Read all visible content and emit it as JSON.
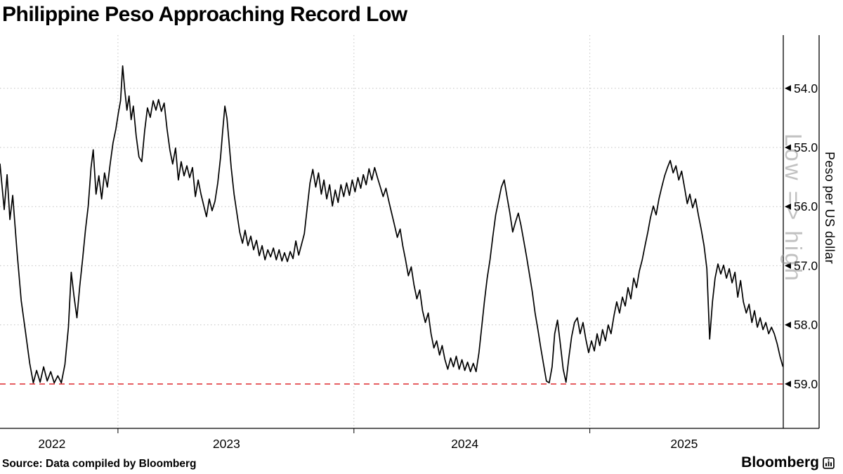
{
  "header": {
    "title": "Philippine Peso Approaching Record Low"
  },
  "footer": {
    "source": "Source: Data compiled by Bloomberg",
    "brand": "Bloomberg"
  },
  "chart_data": {
    "type": "line",
    "title": "Philippine Peso Approaching Record Low",
    "series_name": "Peso per US dollar",
    "ylabel": "Peso per US dollar",
    "axis_direction_note": "Low => high",
    "y_axis_inverted": true,
    "y_ticks": [
      54.0,
      55.0,
      56.0,
      57.0,
      58.0,
      59.0
    ],
    "y_domain": [
      53.1,
      59.75
    ],
    "x_domain": [
      2022.5,
      2025.82
    ],
    "record_low_level": 59.0,
    "year_boundaries": [
      2023,
      2024,
      2025
    ],
    "x_year_labels": [
      {
        "label": "2022",
        "t": 2022.72
      },
      {
        "label": "2023",
        "t": 2023.46
      },
      {
        "label": "2024",
        "t": 2024.47
      },
      {
        "label": "2025",
        "t": 2025.4
      }
    ],
    "line_color": "#000000",
    "record_line_color": "#e0393e",
    "grid_color": "#c3c3c3",
    "points": [
      [
        2022.5,
        55.28
      ],
      [
        2022.518,
        56.05
      ],
      [
        2022.53,
        55.46
      ],
      [
        2022.542,
        56.22
      ],
      [
        2022.554,
        55.81
      ],
      [
        2022.572,
        56.76
      ],
      [
        2022.59,
        57.59
      ],
      [
        2022.608,
        58.12
      ],
      [
        2022.626,
        58.65
      ],
      [
        2022.641,
        58.98
      ],
      [
        2022.655,
        58.77
      ],
      [
        2022.67,
        58.97
      ],
      [
        2022.685,
        58.71
      ],
      [
        2022.7,
        58.95
      ],
      [
        2022.715,
        58.79
      ],
      [
        2022.73,
        58.98
      ],
      [
        2022.745,
        58.86
      ],
      [
        2022.76,
        58.98
      ],
      [
        2022.775,
        58.67
      ],
      [
        2022.79,
        58.04
      ],
      [
        2022.802,
        57.11
      ],
      [
        2022.814,
        57.53
      ],
      [
        2022.826,
        57.88
      ],
      [
        2022.838,
        57.35
      ],
      [
        2022.85,
        56.9
      ],
      [
        2022.862,
        56.4
      ],
      [
        2022.874,
        55.99
      ],
      [
        2022.886,
        55.34
      ],
      [
        2022.895,
        55.04
      ],
      [
        2022.907,
        55.79
      ],
      [
        2022.919,
        55.48
      ],
      [
        2022.931,
        55.87
      ],
      [
        2022.943,
        55.43
      ],
      [
        2022.955,
        55.67
      ],
      [
        2022.967,
        55.28
      ],
      [
        2022.979,
        54.92
      ],
      [
        2022.991,
        54.69
      ],
      [
        2023.002,
        54.41
      ],
      [
        2023.011,
        54.21
      ],
      [
        2023.02,
        53.62
      ],
      [
        2023.029,
        54.04
      ],
      [
        2023.038,
        54.37
      ],
      [
        2023.047,
        54.13
      ],
      [
        2023.056,
        54.53
      ],
      [
        2023.065,
        54.3
      ],
      [
        2023.077,
        54.8
      ],
      [
        2023.089,
        55.16
      ],
      [
        2023.101,
        55.24
      ],
      [
        2023.113,
        54.72
      ],
      [
        2023.125,
        54.33
      ],
      [
        2023.137,
        54.49
      ],
      [
        2023.149,
        54.21
      ],
      [
        2023.161,
        54.37
      ],
      [
        2023.172,
        54.19
      ],
      [
        2023.184,
        54.39
      ],
      [
        2023.196,
        54.25
      ],
      [
        2023.208,
        54.69
      ],
      [
        2023.22,
        55.04
      ],
      [
        2023.232,
        55.28
      ],
      [
        2023.244,
        55.01
      ],
      [
        2023.256,
        55.55
      ],
      [
        2023.268,
        55.24
      ],
      [
        2023.28,
        55.48
      ],
      [
        2023.292,
        55.31
      ],
      [
        2023.304,
        55.51
      ],
      [
        2023.316,
        55.34
      ],
      [
        2023.328,
        55.83
      ],
      [
        2023.34,
        55.55
      ],
      [
        2023.352,
        55.79
      ],
      [
        2023.364,
        55.99
      ],
      [
        2023.375,
        56.17
      ],
      [
        2023.387,
        55.87
      ],
      [
        2023.399,
        56.07
      ],
      [
        2023.411,
        55.91
      ],
      [
        2023.423,
        55.6
      ],
      [
        2023.435,
        55.16
      ],
      [
        2023.444,
        54.72
      ],
      [
        2023.453,
        54.3
      ],
      [
        2023.462,
        54.51
      ],
      [
        2023.471,
        54.92
      ],
      [
        2023.48,
        55.34
      ],
      [
        2023.492,
        55.79
      ],
      [
        2023.504,
        56.11
      ],
      [
        2023.516,
        56.43
      ],
      [
        2023.528,
        56.62
      ],
      [
        2023.539,
        56.4
      ],
      [
        2023.551,
        56.66
      ],
      [
        2023.563,
        56.5
      ],
      [
        2023.575,
        56.73
      ],
      [
        2023.587,
        56.57
      ],
      [
        2023.599,
        56.83
      ],
      [
        2023.611,
        56.66
      ],
      [
        2023.623,
        56.9
      ],
      [
        2023.635,
        56.73
      ],
      [
        2023.647,
        56.85
      ],
      [
        2023.659,
        56.7
      ],
      [
        2023.671,
        56.9
      ],
      [
        2023.683,
        56.73
      ],
      [
        2023.695,
        56.92
      ],
      [
        2023.706,
        56.78
      ],
      [
        2023.718,
        56.93
      ],
      [
        2023.73,
        56.76
      ],
      [
        2023.742,
        56.88
      ],
      [
        2023.754,
        56.58
      ],
      [
        2023.766,
        56.82
      ],
      [
        2023.778,
        56.64
      ],
      [
        2023.79,
        56.46
      ],
      [
        2023.802,
        56.02
      ],
      [
        2023.814,
        55.6
      ],
      [
        2023.826,
        55.37
      ],
      [
        2023.838,
        55.67
      ],
      [
        2023.85,
        55.43
      ],
      [
        2023.862,
        55.79
      ],
      [
        2023.873,
        55.55
      ],
      [
        2023.885,
        55.87
      ],
      [
        2023.897,
        55.63
      ],
      [
        2023.909,
        55.99
      ],
      [
        2023.921,
        55.72
      ],
      [
        2023.933,
        55.93
      ],
      [
        2023.945,
        55.63
      ],
      [
        2023.957,
        55.83
      ],
      [
        2023.969,
        55.6
      ],
      [
        2023.981,
        55.81
      ],
      [
        2023.993,
        55.55
      ],
      [
        2024.005,
        55.75
      ],
      [
        2024.017,
        55.51
      ],
      [
        2024.029,
        55.69
      ],
      [
        2024.04,
        55.46
      ],
      [
        2024.052,
        55.63
      ],
      [
        2024.064,
        55.36
      ],
      [
        2024.076,
        55.55
      ],
      [
        2024.088,
        55.34
      ],
      [
        2024.1,
        55.51
      ],
      [
        2024.112,
        55.67
      ],
      [
        2024.124,
        55.83
      ],
      [
        2024.136,
        55.69
      ],
      [
        2024.148,
        55.91
      ],
      [
        2024.16,
        56.11
      ],
      [
        2024.172,
        56.31
      ],
      [
        2024.184,
        56.52
      ],
      [
        2024.196,
        56.38
      ],
      [
        2024.207,
        56.66
      ],
      [
        2024.219,
        56.9
      ],
      [
        2024.231,
        57.17
      ],
      [
        2024.243,
        57.02
      ],
      [
        2024.255,
        57.33
      ],
      [
        2024.267,
        57.56
      ],
      [
        2024.279,
        57.41
      ],
      [
        2024.291,
        57.76
      ],
      [
        2024.303,
        57.96
      ],
      [
        2024.315,
        57.8
      ],
      [
        2024.327,
        58.15
      ],
      [
        2024.339,
        58.39
      ],
      [
        2024.351,
        58.27
      ],
      [
        2024.363,
        58.51
      ],
      [
        2024.374,
        58.35
      ],
      [
        2024.386,
        58.59
      ],
      [
        2024.398,
        58.75
      ],
      [
        2024.41,
        58.56
      ],
      [
        2024.422,
        58.71
      ],
      [
        2024.434,
        58.53
      ],
      [
        2024.446,
        58.75
      ],
      [
        2024.458,
        58.59
      ],
      [
        2024.47,
        58.77
      ],
      [
        2024.482,
        58.63
      ],
      [
        2024.494,
        58.79
      ],
      [
        2024.506,
        58.65
      ],
      [
        2024.518,
        58.79
      ],
      [
        2024.53,
        58.47
      ],
      [
        2024.541,
        58.06
      ],
      [
        2024.553,
        57.61
      ],
      [
        2024.565,
        57.21
      ],
      [
        2024.577,
        56.9
      ],
      [
        2024.589,
        56.5
      ],
      [
        2024.601,
        56.14
      ],
      [
        2024.613,
        55.91
      ],
      [
        2024.625,
        55.67
      ],
      [
        2024.637,
        55.55
      ],
      [
        2024.649,
        55.83
      ],
      [
        2024.661,
        56.11
      ],
      [
        2024.673,
        56.43
      ],
      [
        2024.685,
        56.26
      ],
      [
        2024.697,
        56.11
      ],
      [
        2024.708,
        56.31
      ],
      [
        2024.72,
        56.58
      ],
      [
        2024.732,
        56.85
      ],
      [
        2024.744,
        57.14
      ],
      [
        2024.756,
        57.44
      ],
      [
        2024.768,
        57.8
      ],
      [
        2024.78,
        58.08
      ],
      [
        2024.792,
        58.39
      ],
      [
        2024.804,
        58.67
      ],
      [
        2024.816,
        58.95
      ],
      [
        2024.828,
        58.98
      ],
      [
        2024.84,
        58.71
      ],
      [
        2024.851,
        58.15
      ],
      [
        2024.863,
        57.92
      ],
      [
        2024.875,
        58.32
      ],
      [
        2024.887,
        58.75
      ],
      [
        2024.899,
        58.97
      ],
      [
        2024.911,
        58.56
      ],
      [
        2024.923,
        58.2
      ],
      [
        2024.935,
        57.96
      ],
      [
        2024.947,
        57.88
      ],
      [
        2024.959,
        58.15
      ],
      [
        2024.971,
        57.96
      ],
      [
        2024.983,
        58.24
      ],
      [
        2024.995,
        58.47
      ],
      [
        2025.007,
        58.27
      ],
      [
        2025.019,
        58.44
      ],
      [
        2025.031,
        58.15
      ],
      [
        2025.042,
        58.35
      ],
      [
        2025.054,
        58.08
      ],
      [
        2025.066,
        58.27
      ],
      [
        2025.078,
        58.0
      ],
      [
        2025.09,
        58.15
      ],
      [
        2025.102,
        57.85
      ],
      [
        2025.114,
        57.61
      ],
      [
        2025.126,
        57.8
      ],
      [
        2025.138,
        57.53
      ],
      [
        2025.15,
        57.68
      ],
      [
        2025.162,
        57.37
      ],
      [
        2025.174,
        57.56
      ],
      [
        2025.186,
        57.21
      ],
      [
        2025.198,
        57.37
      ],
      [
        2025.21,
        57.09
      ],
      [
        2025.222,
        56.9
      ],
      [
        2025.234,
        56.66
      ],
      [
        2025.246,
        56.43
      ],
      [
        2025.257,
        56.19
      ],
      [
        2025.269,
        55.99
      ],
      [
        2025.281,
        56.14
      ],
      [
        2025.293,
        55.87
      ],
      [
        2025.305,
        55.67
      ],
      [
        2025.317,
        55.48
      ],
      [
        2025.329,
        55.34
      ],
      [
        2025.341,
        55.22
      ],
      [
        2025.353,
        55.43
      ],
      [
        2025.365,
        55.31
      ],
      [
        2025.377,
        55.55
      ],
      [
        2025.389,
        55.4
      ],
      [
        2025.401,
        55.67
      ],
      [
        2025.413,
        55.95
      ],
      [
        2025.424,
        55.79
      ],
      [
        2025.436,
        56.02
      ],
      [
        2025.448,
        55.87
      ],
      [
        2025.46,
        56.14
      ],
      [
        2025.472,
        56.38
      ],
      [
        2025.484,
        56.66
      ],
      [
        2025.496,
        57.05
      ],
      [
        2025.508,
        58.24
      ],
      [
        2025.52,
        57.61
      ],
      [
        2025.531,
        57.21
      ],
      [
        2025.543,
        56.97
      ],
      [
        2025.555,
        57.14
      ],
      [
        2025.567,
        56.99
      ],
      [
        2025.579,
        57.21
      ],
      [
        2025.591,
        57.05
      ],
      [
        2025.603,
        57.29
      ],
      [
        2025.615,
        57.11
      ],
      [
        2025.627,
        57.53
      ],
      [
        2025.639,
        57.25
      ],
      [
        2025.651,
        57.61
      ],
      [
        2025.663,
        57.8
      ],
      [
        2025.675,
        57.65
      ],
      [
        2025.687,
        57.96
      ],
      [
        2025.698,
        57.76
      ],
      [
        2025.71,
        58.04
      ],
      [
        2025.722,
        57.88
      ],
      [
        2025.734,
        58.08
      ],
      [
        2025.746,
        57.96
      ],
      [
        2025.758,
        58.15
      ],
      [
        2025.77,
        58.04
      ],
      [
        2025.782,
        58.15
      ],
      [
        2025.794,
        58.32
      ],
      [
        2025.806,
        58.53
      ],
      [
        2025.818,
        58.7
      ]
    ]
  }
}
